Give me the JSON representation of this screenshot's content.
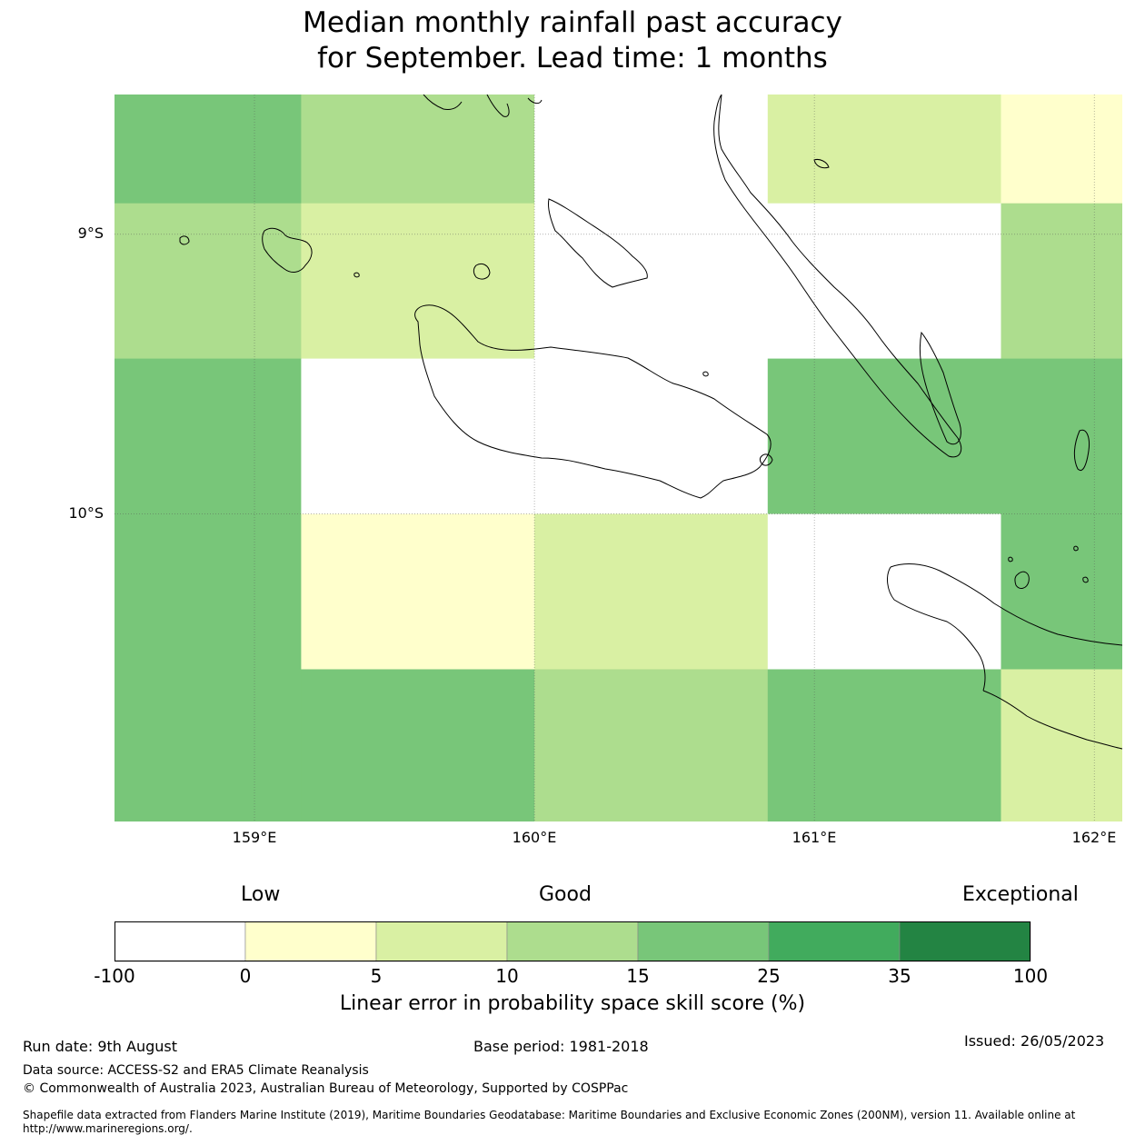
{
  "title_line1": "Median monthly rainfall past accuracy",
  "title_line2": "for September. Lead time: 1 months",
  "map": {
    "lon_range": [
      158.5,
      162.1
    ],
    "lat_range": [
      -8.5,
      -11.1
    ],
    "grid_lons": [
      159,
      160,
      161,
      162
    ],
    "grid_lats": [
      -9,
      -10
    ],
    "lon_labels": [
      "159°E",
      "160°E",
      "161°E",
      "162°E"
    ],
    "lat_labels": [
      "9°S",
      "10°S"
    ],
    "colors": {
      "grid": "#555555",
      "coast": "#000000"
    }
  },
  "skill_grid": {
    "lon_edges": [
      158.5,
      159.1667,
      160.0,
      160.8333,
      161.6667,
      162.1
    ],
    "lat_edges": [
      -8.5,
      -8.8889,
      -9.4444,
      -10.0,
      -10.5556,
      -11.1
    ],
    "cells": [
      [
        15,
        10,
        null,
        5,
        0
      ],
      [
        10,
        5,
        null,
        null,
        10
      ],
      [
        15,
        null,
        null,
        15,
        15
      ],
      [
        15,
        0,
        5,
        null,
        15
      ],
      [
        15,
        15,
        10,
        15,
        5
      ]
    ]
  },
  "colorbar": {
    "low": "Low",
    "good": "Good",
    "exceptional": "Exceptional",
    "ticks": [
      "-100",
      "0",
      "5",
      "10",
      "15",
      "25",
      "35",
      "100"
    ],
    "colors": [
      "#ffffff",
      "#ffffcc",
      "#d9f0a3",
      "#addd8e",
      "#78c679",
      "#41ab5d",
      "#238443"
    ],
    "label": "Linear error in probability space skill score (%)"
  },
  "footer": {
    "run_date": "Run date: 9th August",
    "base_period": "Base period: 1981-2018",
    "issued": "Issued: 26/05/2023",
    "data_source": "Data source: ACCESS-S2 and ERA5 Climate Reanalysis",
    "copyright": "© Commonwealth of Australia 2023, Australian Bureau of Meteorology, Supported by COSPPac",
    "shapefile": "Shapefile data extracted from Flanders Marine Institute (2019), Maritime Boundaries Geodatabase: Maritime Boundaries and Exclusive Economic Zones (200NM), version 11. Available online at http://www.marineregions.org/."
  }
}
